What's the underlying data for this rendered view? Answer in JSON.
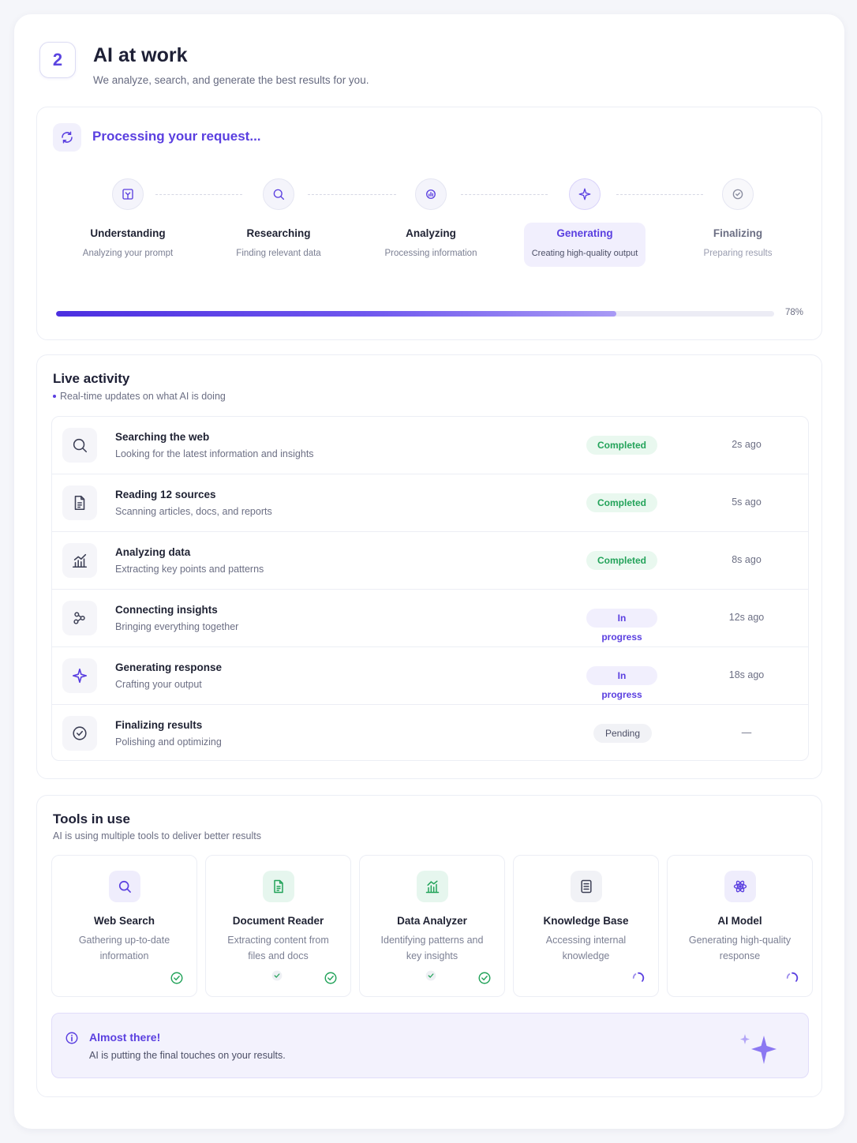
{
  "header": {
    "step_number": "2",
    "title": "AI at work",
    "subtitle": "We analyze, search, and generate the best results for you."
  },
  "processing": {
    "title": "Processing your request...",
    "steps": [
      {
        "name": "Understanding",
        "desc": "Analyzing your prompt",
        "icon": "book-icon",
        "state": "done"
      },
      {
        "name": "Researching",
        "desc": "Finding relevant data",
        "icon": "search-icon",
        "state": "done"
      },
      {
        "name": "Analyzing",
        "desc": "Processing information",
        "icon": "chart-gear-icon",
        "state": "done"
      },
      {
        "name": "Generating",
        "desc": "Creating high-quality output",
        "icon": "sparkle-icon",
        "state": "active"
      },
      {
        "name": "Finalizing",
        "desc": "Preparing results",
        "icon": "check-badge-icon",
        "state": "pending"
      }
    ],
    "progress_percent": 78,
    "progress_label": "78%"
  },
  "activity": {
    "title": "Live activity",
    "subtitle": "Real-time updates on what AI is doing",
    "rows": [
      {
        "title": "Searching the web",
        "desc": "Looking for the latest information and insights",
        "status": "Completed",
        "time": "2s ago",
        "icon": "search-icon"
      },
      {
        "title": "Reading 12 sources",
        "desc": "Scanning articles, docs, and reports",
        "status": "Completed",
        "time": "5s ago",
        "icon": "document-icon"
      },
      {
        "title": "Analyzing data",
        "desc": "Extracting key points and patterns",
        "status": "Completed",
        "time": "8s ago",
        "icon": "chart-icon"
      },
      {
        "title": "Connecting insights",
        "desc": "Bringing everything together",
        "status": "In progress",
        "time": "12s ago",
        "icon": "network-icon"
      },
      {
        "title": "Generating response",
        "desc": "Crafting your output",
        "status": "In progress",
        "time": "18s ago",
        "icon": "sparkle-icon"
      },
      {
        "title": "Finalizing results",
        "desc": "Polishing and optimizing",
        "status": "Pending",
        "time": "—",
        "icon": "check-circle-icon"
      }
    ]
  },
  "tools": {
    "title": "Tools in use",
    "subtitle": "AI is using multiple tools to deliver better results",
    "items": [
      {
        "name": "Web Search",
        "desc": "Gathering up-to-date information",
        "status": "done",
        "icon": "search-icon"
      },
      {
        "name": "Document Reader",
        "desc": "Extracting content from files and docs",
        "status": "done",
        "icon": "document-icon"
      },
      {
        "name": "Data Analyzer",
        "desc": "Identifying patterns and key insights",
        "status": "done",
        "icon": "chart-icon"
      },
      {
        "name": "Knowledge Base",
        "desc": "Accessing internal knowledge",
        "status": "loading",
        "icon": "list-icon"
      },
      {
        "name": "AI Model",
        "desc": "Generating high-quality response",
        "status": "loading",
        "icon": "atom-icon"
      }
    ]
  },
  "notice": {
    "title": "Almost there!",
    "desc": "AI is putting the final touches on your results."
  },
  "colors": {
    "accent": "#5a3fe0",
    "success": "#23a35a",
    "background": "#f5f6fa"
  }
}
